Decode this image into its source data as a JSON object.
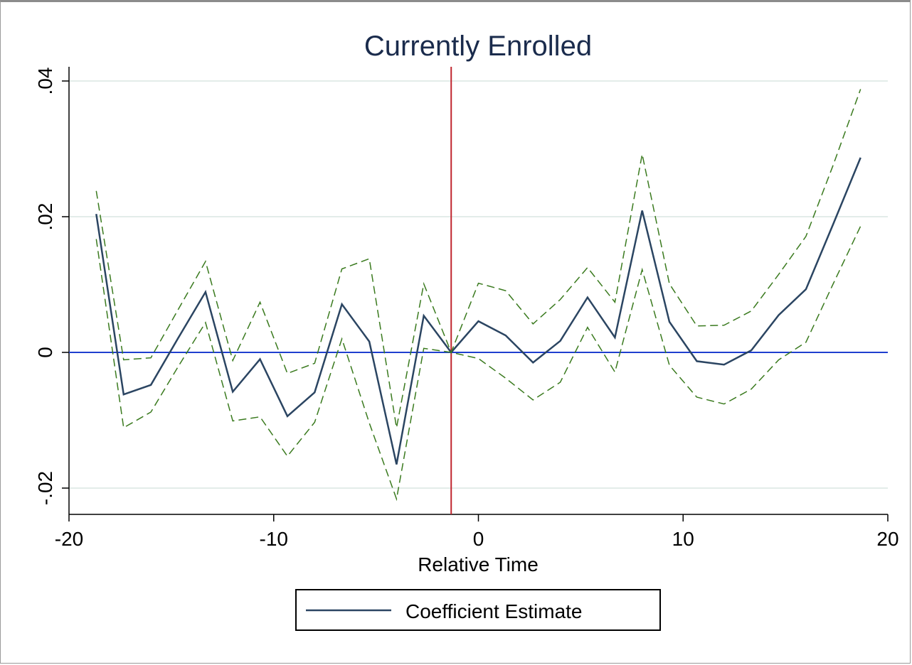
{
  "chart_data": {
    "type": "line",
    "title": "Currently Enrolled",
    "xlabel": "Relative Time",
    "ylabel": "",
    "xlim": [
      -20,
      20
    ],
    "ylim": [
      -0.024,
      0.042
    ],
    "xticks": [
      -20,
      -10,
      0,
      10,
      20
    ],
    "xtick_labels": [
      "-20",
      "-10",
      "0",
      "10",
      "20"
    ],
    "yticks": [
      -0.02,
      0,
      0.02,
      0.04
    ],
    "ytick_labels": [
      "-.02",
      "0",
      ".02",
      ".04"
    ],
    "grid": true,
    "legend": {
      "position": "bottom",
      "entries": [
        "Coefficient Estimate"
      ]
    },
    "reference_lines": {
      "horizontal_y": 0,
      "vertical_x": -1.33
    },
    "colors": {
      "estimate": "#2b4562",
      "ci": "#3a7a1e",
      "zero_line": "#1f3fcf",
      "event_line": "#c0262f",
      "grid": "#e3ece9"
    },
    "x": [
      -18.67,
      -17.33,
      -16,
      -14.67,
      -13.33,
      -12,
      -10.67,
      -9.33,
      -8,
      -6.67,
      -5.33,
      -4,
      -2.67,
      -1.33,
      0,
      1.33,
      2.67,
      4,
      5.33,
      6.67,
      8,
      9.33,
      10.67,
      12,
      13.33,
      14.67,
      16,
      17.33,
      18.67
    ],
    "series": [
      {
        "name": "Coefficient Estimate",
        "style": "solid",
        "values": [
          0.0204,
          -0.0062,
          -0.0048,
          0.0021,
          0.0089,
          -0.0058,
          -0.001,
          -0.0094,
          -0.0059,
          0.0071,
          0.0016,
          -0.0165,
          0.0054,
          0.0,
          0.0046,
          0.0025,
          -0.0015,
          0.0017,
          0.0081,
          0.0022,
          0.0209,
          0.0045,
          -0.0013,
          -0.0018,
          0.0003,
          0.0055,
          0.0093,
          0.0189,
          0.0287
        ]
      },
      {
        "style": "dashed",
        "values": [
          0.0238,
          -0.0011,
          -0.0008,
          0.0063,
          0.0134,
          -0.0012,
          0.0074,
          -0.0031,
          -0.0016,
          0.0123,
          0.0138,
          -0.0111,
          0.0101,
          0.0,
          0.0102,
          0.0091,
          0.0042,
          0.0078,
          0.0125,
          0.0074,
          0.0292,
          0.0101,
          0.0039,
          0.004,
          0.0061,
          0.0115,
          0.0171,
          0.0276,
          0.0388
        ]
      },
      {
        "style": "dashed",
        "values": [
          0.0167,
          -0.0111,
          -0.0088,
          -0.0021,
          0.0044,
          -0.0101,
          -0.0095,
          -0.0153,
          -0.0103,
          0.002,
          -0.0104,
          -0.0216,
          0.0006,
          0.0,
          -0.0009,
          -0.0038,
          -0.007,
          -0.0044,
          0.0037,
          -0.0029,
          0.0122,
          -0.0019,
          -0.0066,
          -0.0076,
          -0.0054,
          -0.0011,
          0.0015,
          0.0101,
          0.0186
        ]
      }
    ]
  }
}
